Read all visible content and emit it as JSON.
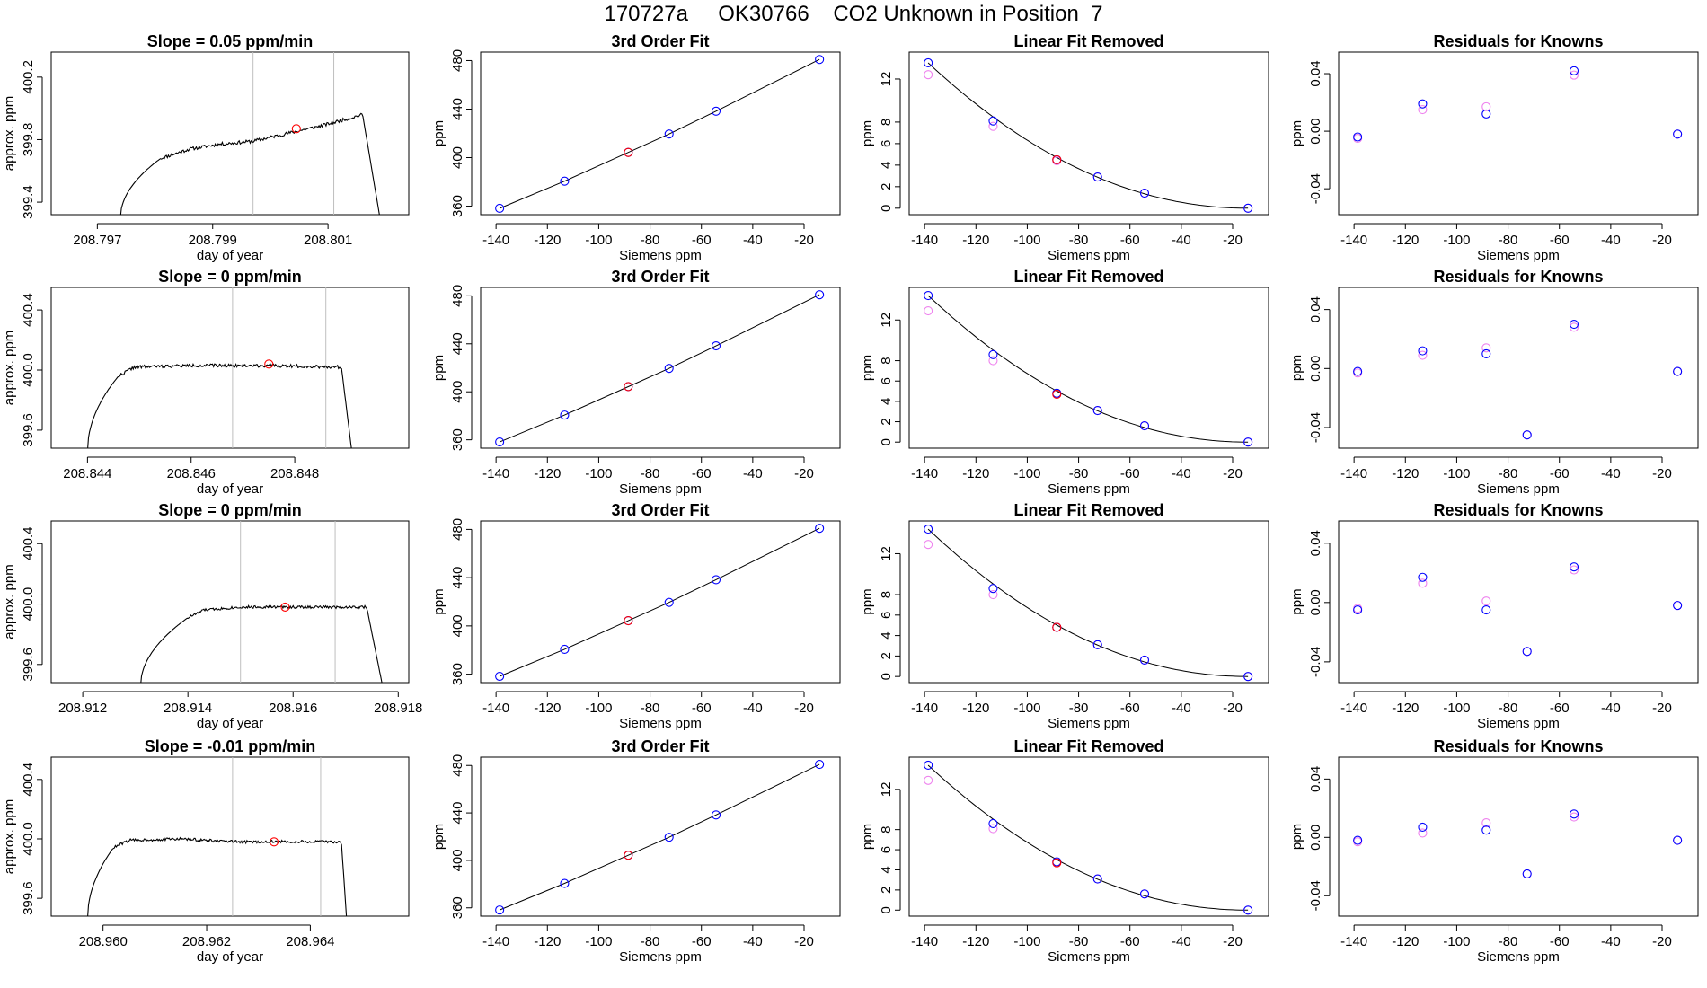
{
  "main_title": "170727a     OK30766    CO2 Unknown in Position  7",
  "colors": {
    "axis": "#000000",
    "line": "#000000",
    "vline": "#bebebe",
    "red": "#ff0000",
    "blue": "#0000ff",
    "violet": "#ee82ee"
  },
  "rows": [
    {
      "slope": {
        "title": "Slope =  0.05  ppm/min",
        "xlabel": "day of year",
        "ylabel": "approx. ppm",
        "xlim": [
          208.7962,
          208.8024
        ],
        "ylim": [
          399.32,
          400.36
        ],
        "xticks": [
          208.797,
          208.799,
          208.801
        ],
        "xtick_labels": [
          "208.797",
          "208.799",
          "208.801"
        ],
        "yticks": [
          399.4,
          399.8,
          400.2
        ],
        "ytick_labels": [
          "399.4",
          "399.8",
          "400.2"
        ],
        "vlines": [
          208.7997,
          208.8011
        ],
        "marker": [
          208.80045,
          399.87
        ],
        "trace": {
          "x0": 208.7974,
          "x1": 208.8019,
          "rise_end": 208.7981,
          "fall_start": 208.8016,
          "floor": 399.3,
          "plateau": [
            [
              208.7981,
              399.68
            ],
            [
              208.7986,
              399.74
            ],
            [
              208.7991,
              399.77
            ],
            [
              208.7997,
              399.79
            ],
            [
              208.8003,
              399.84
            ],
            [
              208.8009,
              399.89
            ],
            [
              208.8012,
              399.92
            ],
            [
              208.8016,
              399.96
            ]
          ],
          "noise": 0.011,
          "seed": 11
        }
      },
      "fit": {
        "title": "3rd Order Fit",
        "xlabel": "Siemens ppm",
        "ylabel": "ppm"
      },
      "linrem": {
        "title": "Linear Fit Removed",
        "xlabel": "Siemens ppm",
        "ylabel": "ppm",
        "ylim": [
          -0.6,
          14.5
        ],
        "yticks": [
          0,
          2,
          4,
          6,
          8,
          12
        ],
        "ytick_labels": [
          "0",
          "2",
          "4",
          "6",
          "8",
          "12"
        ],
        "blue": [
          13.5,
          8.1,
          4.5,
          2.9,
          1.4,
          0.0
        ],
        "violet": [
          12.4,
          7.6,
          4.4,
          2.9,
          1.4,
          0.0
        ],
        "red": 4.5
      },
      "resid": {
        "title": "Residuals for Knowns",
        "xlabel": "Siemens ppm",
        "ylabel": "ppm",
        "ylim": [
          -0.058,
          0.055
        ],
        "blue": [
          -0.004,
          0.019,
          0.012,
          null,
          0.042,
          -0.002
        ],
        "violet": [
          -0.005,
          0.015,
          0.017,
          null,
          0.039,
          -0.002
        ]
      }
    },
    {
      "slope": {
        "title": "Slope =  0  ppm/min",
        "xlabel": "day of year",
        "ylabel": "approx. ppm",
        "xlim": [
          208.8433,
          208.8502
        ],
        "ylim": [
          399.48,
          400.55
        ],
        "xticks": [
          208.844,
          208.846,
          208.848
        ],
        "xtick_labels": [
          "208.844",
          "208.846",
          "208.848"
        ],
        "yticks": [
          399.6,
          400.0,
          400.4
        ],
        "ytick_labels": [
          "399.6",
          "400.0",
          "400.4"
        ],
        "vlines": [
          208.8468,
          208.8486
        ],
        "marker": [
          208.8475,
          400.04
        ],
        "trace": {
          "x0": 208.844,
          "x1": 208.8491,
          "rise_end": 208.8446,
          "fall_start": 208.8489,
          "floor": 399.46,
          "plateau": [
            [
              208.8446,
              399.96
            ],
            [
              208.8449,
              400.02
            ],
            [
              208.846,
              400.03
            ],
            [
              208.8475,
              400.03
            ],
            [
              208.8489,
              400.02
            ]
          ],
          "noise": 0.011,
          "seed": 22
        }
      },
      "fit": {
        "title": "3rd Order Fit",
        "xlabel": "Siemens ppm",
        "ylabel": "ppm"
      },
      "linrem": {
        "title": "Linear Fit Removed",
        "xlabel": "Siemens ppm",
        "ylabel": "ppm",
        "ylim": [
          -0.6,
          15.2
        ],
        "yticks": [
          0,
          2,
          4,
          6,
          8,
          12
        ],
        "ytick_labels": [
          "0",
          "2",
          "4",
          "6",
          "8",
          "12"
        ],
        "blue": [
          14.4,
          8.6,
          4.8,
          3.1,
          1.6,
          0.0
        ],
        "violet": [
          12.9,
          8.0,
          4.7,
          3.1,
          1.6,
          0.0
        ],
        "red": 4.7
      },
      "resid": {
        "title": "Residuals for Knowns",
        "xlabel": "Siemens ppm",
        "ylabel": "ppm",
        "ylim": [
          -0.054,
          0.055
        ],
        "blue": [
          -0.002,
          0.012,
          0.01,
          -0.045,
          0.03,
          -0.002
        ],
        "violet": [
          -0.003,
          0.009,
          0.014,
          -0.045,
          0.028,
          -0.002
        ]
      }
    },
    {
      "slope": {
        "title": "Slope =  0  ppm/min",
        "xlabel": "day of year",
        "ylabel": "approx. ppm",
        "xlim": [
          208.9114,
          208.9182
        ],
        "ylim": [
          399.48,
          400.55
        ],
        "xticks": [
          208.912,
          208.914,
          208.916,
          208.918
        ],
        "xtick_labels": [
          "208.912",
          "208.914",
          "208.916",
          "208.918"
        ],
        "vlines": [
          208.915,
          208.9168
        ],
        "yticks": [
          399.6,
          400.0,
          400.4
        ],
        "ytick_labels": [
          "399.6",
          "400.0",
          "400.4"
        ],
        "marker": [
          208.91585,
          399.98
        ],
        "trace": {
          "x0": 208.9131,
          "x1": 208.9177,
          "rise_end": 208.914,
          "fall_start": 208.9174,
          "floor": 399.46,
          "plateau": [
            [
              208.9134,
              399.7
            ],
            [
              208.9137,
              399.84
            ],
            [
              208.914,
              399.91
            ],
            [
              208.9143,
              399.96
            ],
            [
              208.915,
              399.98
            ],
            [
              208.916,
              399.98
            ],
            [
              208.9174,
              399.98
            ]
          ],
          "noise": 0.009,
          "seed": 33
        }
      },
      "fit": {
        "title": "3rd Order Fit",
        "xlabel": "Siemens ppm",
        "ylabel": "ppm"
      },
      "linrem": {
        "title": "Linear Fit Removed",
        "xlabel": "Siemens ppm",
        "ylabel": "ppm",
        "ylim": [
          -0.6,
          15.2
        ],
        "yticks": [
          0,
          2,
          4,
          6,
          8,
          12
        ],
        "ytick_labels": [
          "0",
          "2",
          "4",
          "6",
          "8",
          "12"
        ],
        "blue": [
          14.4,
          8.6,
          4.8,
          3.1,
          1.6,
          0.0
        ],
        "violet": [
          12.9,
          8.0,
          4.8,
          3.1,
          1.6,
          0.0
        ],
        "red": 4.8
      },
      "resid": {
        "title": "Residuals for Knowns",
        "xlabel": "Siemens ppm",
        "ylabel": "ppm",
        "ylim": [
          -0.054,
          0.055
        ],
        "blue": [
          -0.005,
          0.017,
          -0.005,
          -0.033,
          0.024,
          -0.002
        ],
        "violet": [
          -0.004,
          0.013,
          0.001,
          -0.033,
          0.022,
          -0.002
        ]
      }
    },
    {
      "slope": {
        "title": "Slope =  -0.01  ppm/min",
        "xlabel": "day of year",
        "ylabel": "approx. ppm",
        "xlim": [
          208.959,
          208.9659
        ],
        "ylim": [
          399.48,
          400.55
        ],
        "xticks": [
          208.96,
          208.962,
          208.964
        ],
        "xtick_labels": [
          "208.960",
          "208.962",
          "208.964"
        ],
        "vlines": [
          208.9625,
          208.9642
        ],
        "yticks": [
          399.6,
          400.0,
          400.4
        ],
        "ytick_labels": [
          "399.6",
          "400.0",
          "400.4"
        ],
        "marker": [
          208.9633,
          399.98
        ],
        "trace": {
          "x0": 208.9597,
          "x1": 208.9647,
          "rise_end": 208.9602,
          "fall_start": 208.9646,
          "floor": 399.46,
          "plateau": [
            [
              208.9602,
              399.94
            ],
            [
              208.9605,
              399.99
            ],
            [
              208.9615,
              400.0
            ],
            [
              208.9625,
              399.98
            ],
            [
              208.9636,
              399.98
            ],
            [
              208.9646,
              399.98
            ]
          ],
          "noise": 0.01,
          "seed": 44
        }
      },
      "fit": {
        "title": "3rd Order Fit",
        "xlabel": "Siemens ppm",
        "ylabel": "ppm"
      },
      "linrem": {
        "title": "Linear Fit Removed",
        "xlabel": "Siemens ppm",
        "ylabel": "ppm",
        "ylim": [
          -0.6,
          15.2
        ],
        "yticks": [
          0,
          2,
          4,
          6,
          8,
          12
        ],
        "ytick_labels": [
          "0",
          "2",
          "4",
          "6",
          "8",
          "12"
        ],
        "blue": [
          14.4,
          8.6,
          4.8,
          3.1,
          1.6,
          0.0
        ],
        "violet": [
          12.9,
          8.1,
          4.7,
          3.1,
          1.6,
          0.0
        ],
        "red": 4.7
      },
      "resid": {
        "title": "Residuals for Knowns",
        "xlabel": "Siemens ppm",
        "ylabel": "ppm",
        "ylim": [
          -0.054,
          0.055
        ],
        "blue": [
          -0.002,
          0.007,
          0.005,
          -0.025,
          0.016,
          -0.002
        ],
        "violet": [
          -0.003,
          0.003,
          0.01,
          -0.025,
          0.014,
          -0.002
        ]
      }
    }
  ],
  "chart_data": {
    "type": "scatter",
    "title": "170727a     OK30766    CO2 Unknown in Position  7",
    "siemens_x": [
      -138.6,
      -113.3,
      -88.5,
      -72.6,
      -54.3,
      -14.0
    ],
    "unknown_x": -88.5,
    "fit": {
      "title": "3rd Order Fit",
      "xlabel": "Siemens ppm",
      "ylabel": "ppm",
      "xlim": [
        -146,
        -6
      ],
      "ylim": [
        353,
        487
      ],
      "xticks": [
        -140,
        -120,
        -100,
        -80,
        -60,
        -40,
        -20
      ],
      "xtick_labels": [
        "-140",
        "-120",
        "-100",
        "-80",
        "-60",
        "-40",
        "-20"
      ],
      "yticks": [
        360,
        400,
        440,
        480
      ],
      "ytick_labels": [
        "360",
        "400",
        "440",
        "480"
      ],
      "ppm": [
        358.2,
        380.6,
        404.3,
        419.5,
        438.3,
        480.9
      ],
      "unknown_ppm": 404.3
    },
    "linear_fit_removed": {
      "title": "Linear Fit Removed",
      "xlabel": "Siemens ppm",
      "ylabel": "ppm",
      "yticks": [
        0,
        2,
        4,
        6,
        8,
        12
      ]
    },
    "residuals": {
      "title": "Residuals for Knowns",
      "xlabel": "Siemens ppm",
      "ylabel": "ppm",
      "yticks": [
        -0.04,
        0.0,
        0.04
      ],
      "ytick_labels": [
        "-0.04",
        "0.00",
        "0.04"
      ]
    },
    "series": [
      {
        "panel": "slope",
        "values": "per-row trace in rows[].slope.trace"
      },
      {
        "panel": "linear_fit_removed",
        "values": "per-row blue / violet / red in rows[].linrem"
      },
      {
        "panel": "residuals",
        "values": "per-row blue / violet in rows[].resid"
      }
    ]
  }
}
